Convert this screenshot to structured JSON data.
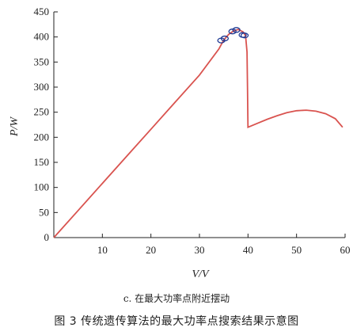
{
  "chart_data": {
    "type": "line",
    "xlabel": "V/V",
    "ylabel": "P/W",
    "xlim": [
      0,
      60
    ],
    "ylim": [
      0,
      450
    ],
    "xticks": [
      10,
      20,
      30,
      40,
      50,
      60
    ],
    "yticks": [
      0,
      50,
      100,
      150,
      200,
      250,
      300,
      350,
      400,
      450
    ],
    "grid": false,
    "line_color": "#d9534f",
    "marker_color": "#1f3a93",
    "series": [
      {
        "values": [
          [
            0,
            0
          ],
          [
            5,
            54
          ],
          [
            10,
            108
          ],
          [
            15,
            162
          ],
          [
            20,
            216
          ],
          [
            25,
            270
          ],
          [
            30,
            324
          ],
          [
            34,
            376
          ],
          [
            35,
            394
          ],
          [
            36,
            405
          ],
          [
            37,
            412
          ],
          [
            38,
            415
          ],
          [
            39,
            410
          ],
          [
            39.5,
            402
          ],
          [
            39.8,
            370
          ],
          [
            39.9,
            300
          ],
          [
            40,
            220
          ],
          [
            42,
            228
          ],
          [
            44,
            236
          ],
          [
            46,
            243
          ],
          [
            48,
            249
          ],
          [
            50,
            253
          ],
          [
            52,
            254
          ],
          [
            54,
            252
          ],
          [
            56,
            247
          ],
          [
            58,
            237
          ],
          [
            59.5,
            220
          ]
        ]
      }
    ],
    "markers": [
      [
        34.5,
        393
      ],
      [
        35.2,
        397
      ],
      [
        36.8,
        411
      ],
      [
        37.6,
        414
      ],
      [
        38.9,
        404
      ],
      [
        39.3,
        403
      ]
    ]
  },
  "captions": {
    "sub": "c. 在最大功率点附近摆动",
    "figure": "图 3  传统遗传算法的最大功率点搜索结果示意图"
  }
}
